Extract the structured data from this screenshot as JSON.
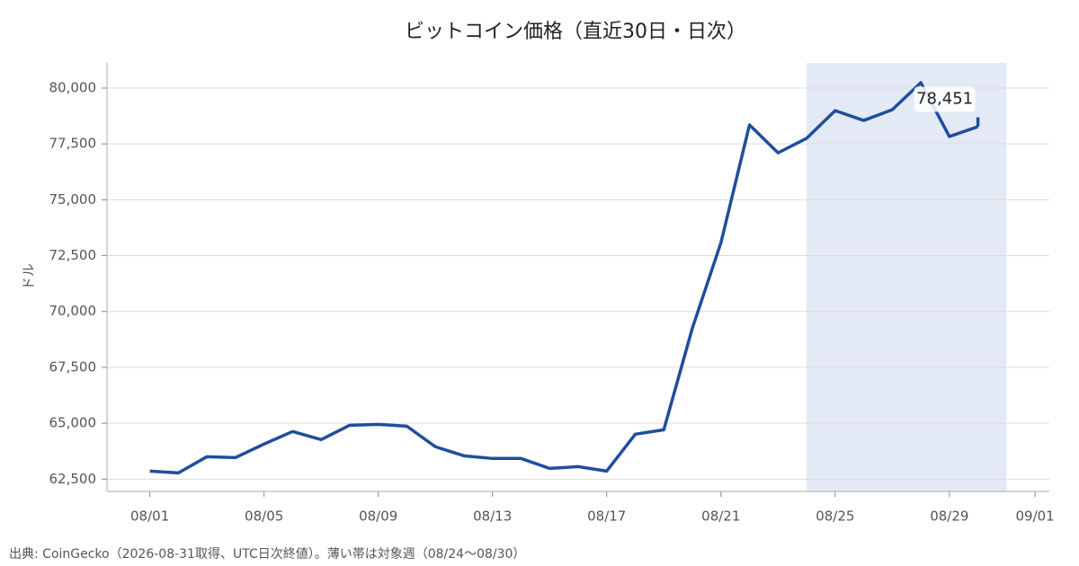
{
  "chart_data": {
    "type": "line",
    "title": "ビットコイン価格（直近30日・日次）",
    "y_label": "ドル",
    "source_note": "出典: CoinGecko（2026-08-31取得、UTC日次終値）。薄い帯は対象週（08/24〜08/30）",
    "x": [
      "08/01",
      "08/02",
      "08/03",
      "08/04",
      "08/05",
      "08/06",
      "08/07",
      "08/08",
      "08/09",
      "08/10",
      "08/11",
      "08/12",
      "08/13",
      "08/14",
      "08/15",
      "08/16",
      "08/17",
      "08/18",
      "08/19",
      "08/20",
      "08/21",
      "08/22",
      "08/23",
      "08/24",
      "08/25",
      "08/26",
      "08/27",
      "08/28",
      "08/29",
      "08/30"
    ],
    "series": [
      {
        "color": "#1f4e9c",
        "values": [
          62860,
          62780,
          63505,
          63465,
          64070,
          64630,
          64270,
          64910,
          64950,
          64870,
          63950,
          63545,
          63425,
          63425,
          62980,
          63060,
          62860,
          64510,
          64710,
          69260,
          73080,
          78350,
          77100,
          77750,
          78990,
          78550,
          79030,
          80240,
          77830,
          78270
        ]
      }
    ],
    "xticks": [
      "08/01",
      "08/05",
      "08/09",
      "08/13",
      "08/17",
      "08/21",
      "08/25",
      "08/29",
      "09/01"
    ],
    "ylim": [
      61950,
      81125
    ],
    "yticks": [
      {
        "value": 62500,
        "label": "62,500"
      },
      {
        "value": 65000,
        "label": "65,000"
      },
      {
        "value": 67500,
        "label": "67,500"
      },
      {
        "value": 70000,
        "label": "70,000"
      },
      {
        "value": 72500,
        "label": "72,500"
      },
      {
        "value": 75000,
        "label": "75,000"
      },
      {
        "value": 77500,
        "label": "77,500"
      },
      {
        "value": 80000,
        "label": "80,000"
      }
    ],
    "grid": true,
    "highlight": {
      "from": "08/24",
      "to": "08/30",
      "color": "#e3eaf6"
    },
    "annotation": {
      "value": 78451,
      "label": "78,451"
    }
  }
}
